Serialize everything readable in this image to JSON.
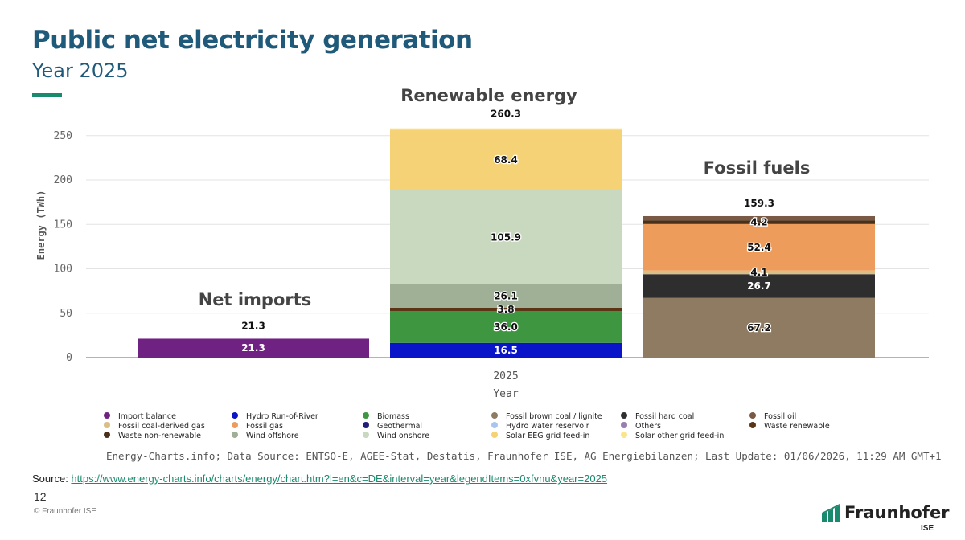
{
  "header": {
    "title": "Public net electricity generation",
    "subtitle": "Year 2025"
  },
  "colors": {
    "accent": "#1a8a6e",
    "title": "#1f5a7a"
  },
  "chart_data": {
    "type": "bar",
    "stacked": true,
    "xlabel": "Year",
    "ylabel": "Energy (TWh)",
    "ylim": [
      0,
      260
    ],
    "yticks": [
      0,
      50,
      100,
      150,
      200,
      250
    ],
    "x_tick_label": "2025",
    "grid": true,
    "source_note": "Energy-Charts.info; Data Source: ENTSO-E, AGEE-Stat, Destatis, Fraunhofer ISE, AG Energiebilanzen; Last Update: 01/06/2026, 11:29 AM GMT+1",
    "bars": [
      {
        "category": "Net imports",
        "total": 21.3,
        "segments": [
          {
            "name": "Import balance",
            "value": 21.3,
            "color": "#6f2281",
            "label": "21.3"
          }
        ]
      },
      {
        "category": "Renewable energy",
        "total": 260.3,
        "segments": [
          {
            "name": "Hydro Run-of-River",
            "value": 16.5,
            "color": "#0a14c8",
            "label": "16.5"
          },
          {
            "name": "Biomass",
            "value": 36.0,
            "color": "#3e9640",
            "label": "36.0"
          },
          {
            "name": "Waste renewable",
            "value": 3.8,
            "color": "#5a3415",
            "label": "3.8"
          },
          {
            "name": "Wind offshore",
            "value": 26.1,
            "color": "#9fb096",
            "label": "26.1"
          },
          {
            "name": "Wind onshore",
            "value": 105.9,
            "color": "#c8d9bf",
            "label": "105.9"
          },
          {
            "name": "Solar EEG grid feed-in",
            "value": 68.4,
            "color": "#f6d277",
            "label": "68.4"
          },
          {
            "name": "Solar other grid feed-in",
            "value": 1.5,
            "color": "#fbe48c",
            "label": ""
          }
        ]
      },
      {
        "category": "Fossil fuels",
        "total": 159.3,
        "segments": [
          {
            "name": "Fossil brown coal / lignite",
            "value": 67.2,
            "color": "#8f7a62",
            "label": "67.2"
          },
          {
            "name": "Fossil hard coal",
            "value": 26.7,
            "color": "#2e2e2e",
            "label": "26.7"
          },
          {
            "name": "Fossil coal-derived gas",
            "value": 4.1,
            "color": "#d9be86",
            "label": "4.1"
          },
          {
            "name": "Fossil gas",
            "value": 52.4,
            "color": "#ee9c5b",
            "label": "52.4"
          },
          {
            "name": "Waste non-renewable",
            "value": 4.2,
            "color": "#4a3018",
            "label": "4.2"
          },
          {
            "name": "Fossil oil",
            "value": 4.7,
            "color": "#7a5a45",
            "label": ""
          }
        ]
      }
    ],
    "legend": [
      {
        "name": "Import balance",
        "color": "#6f2281"
      },
      {
        "name": "Hydro Run-of-River",
        "color": "#0a14c8"
      },
      {
        "name": "Biomass",
        "color": "#3e9640"
      },
      {
        "name": "Fossil brown coal / lignite",
        "color": "#8f7a62"
      },
      {
        "name": "Fossil hard coal",
        "color": "#2e2e2e"
      },
      {
        "name": "Fossil oil",
        "color": "#7a5a45"
      },
      {
        "name": "Fossil coal-derived gas",
        "color": "#d9be86"
      },
      {
        "name": "Fossil gas",
        "color": "#ee9c5b"
      },
      {
        "name": "Geothermal",
        "color": "#20207a"
      },
      {
        "name": "Hydro water reservoir",
        "color": "#a9c4ef"
      },
      {
        "name": "Others",
        "color": "#9a7cb0"
      },
      {
        "name": "Waste renewable",
        "color": "#5a3415"
      },
      {
        "name": "Waste non-renewable",
        "color": "#4a3018"
      },
      {
        "name": "Wind offshore",
        "color": "#9fb096"
      },
      {
        "name": "Wind onshore",
        "color": "#c8d9bf"
      },
      {
        "name": "Solar EEG grid feed-in",
        "color": "#f6d277"
      },
      {
        "name": "Solar other grid feed-in",
        "color": "#fbe48c"
      }
    ]
  },
  "footer": {
    "source_label": "Source: ",
    "source_url": "https://www.energy-charts.info/charts/energy/chart.htm?l=en&c=DE&interval=year&legendItems=0xfvnu&year=2025",
    "page_number": "12",
    "copyright": "© Fraunhofer ISE",
    "logo_name": "Fraunhofer",
    "logo_sub": "ISE"
  }
}
